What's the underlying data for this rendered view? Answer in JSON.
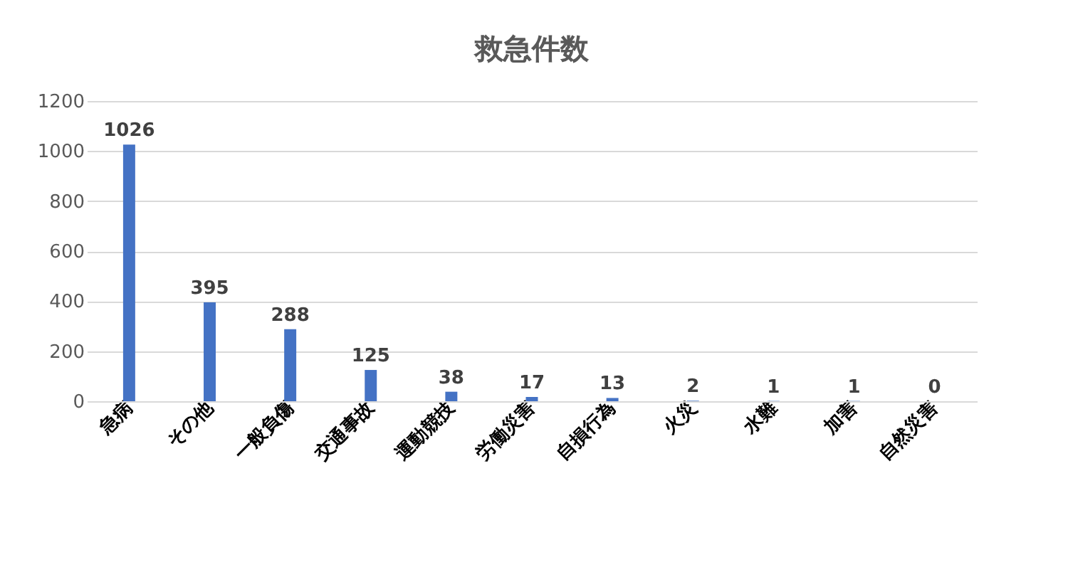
{
  "chart_data": {
    "type": "bar",
    "title": "救急件数",
    "categories": [
      "急病",
      "その他",
      "一般負傷",
      "交通事故",
      "運動競技",
      "労働災害",
      "自損行為",
      "火災",
      "水難",
      "加害",
      "自然災害"
    ],
    "values": [
      1026,
      395,
      288,
      125,
      38,
      17,
      13,
      2,
      1,
      1,
      0
    ],
    "color": "#4472c4",
    "ylim": [
      0,
      1200
    ],
    "yticks": [
      0,
      200,
      400,
      600,
      800,
      1000,
      1200
    ],
    "grid": "y",
    "data_labels": true
  }
}
